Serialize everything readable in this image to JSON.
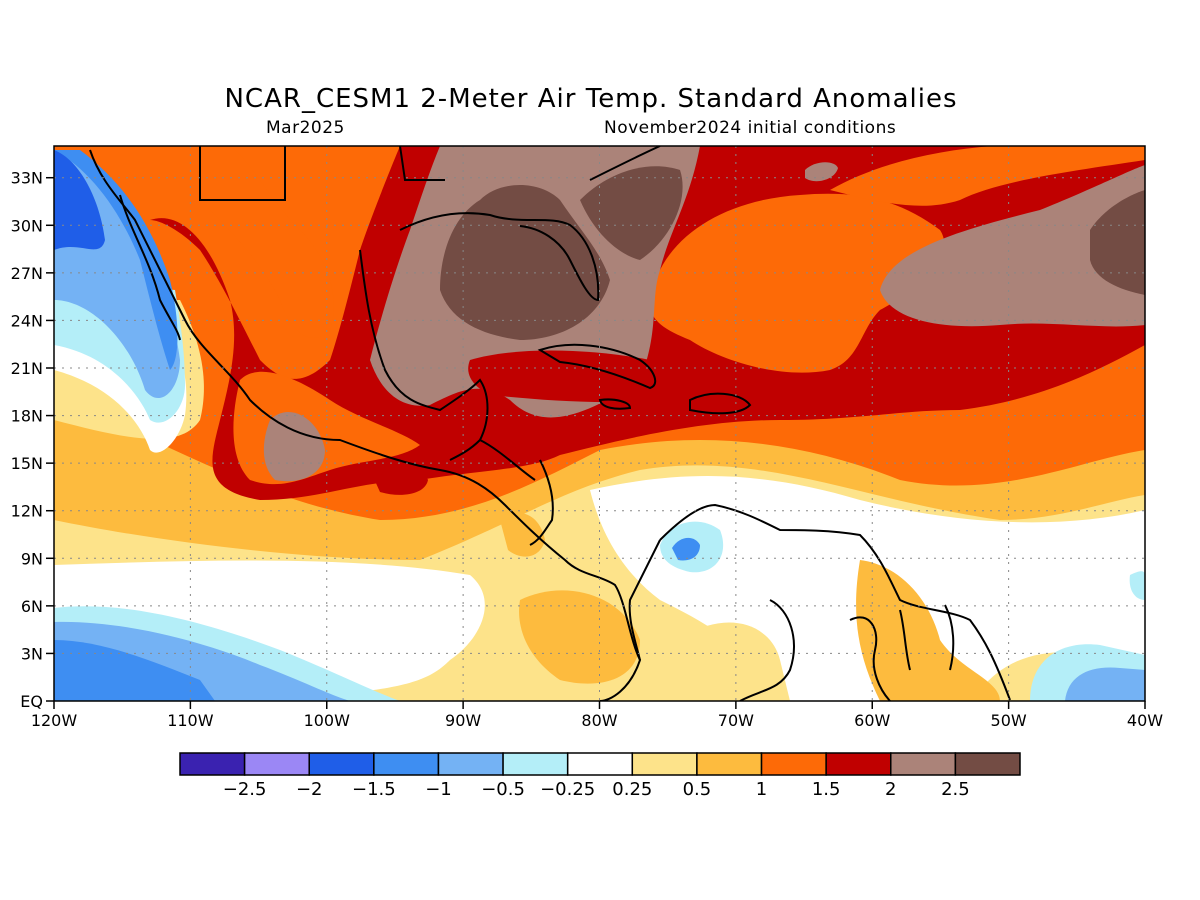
{
  "title": "NCAR_CESM1 2-Meter Air Temp. Standard Anomalies",
  "subtitle_left": "Mar2025",
  "subtitle_right": "November2024 initial conditions",
  "map": {
    "lon_labels": [
      "120W",
      "110W",
      "100W",
      "90W",
      "80W",
      "70W",
      "60W",
      "50W",
      "40W"
    ],
    "lat_labels": [
      "EQ",
      "3N",
      "6N",
      "9N",
      "12N",
      "15N",
      "18N",
      "21N",
      "24N",
      "27N",
      "30N",
      "33N"
    ],
    "lon_range": [
      -120,
      -40
    ],
    "lat_range": [
      0,
      35
    ],
    "grid": "dotted"
  },
  "colorbar": {
    "colors": [
      "#3a22b0",
      "#9b87f5",
      "#1f5ee8",
      "#3e8ef2",
      "#74b2f4",
      "#b4eef8",
      "#ffffff",
      "#fde38a",
      "#fdbb3e",
      "#fd6a07",
      "#c00000",
      "#ab8379",
      "#734c44"
    ],
    "labels": [
      "-2.5",
      "-2",
      "-1.5",
      "-1",
      "-0.5",
      "-0.25",
      "0.25",
      "0.5",
      "1",
      "1.5",
      "2",
      "2.5"
    ]
  }
}
